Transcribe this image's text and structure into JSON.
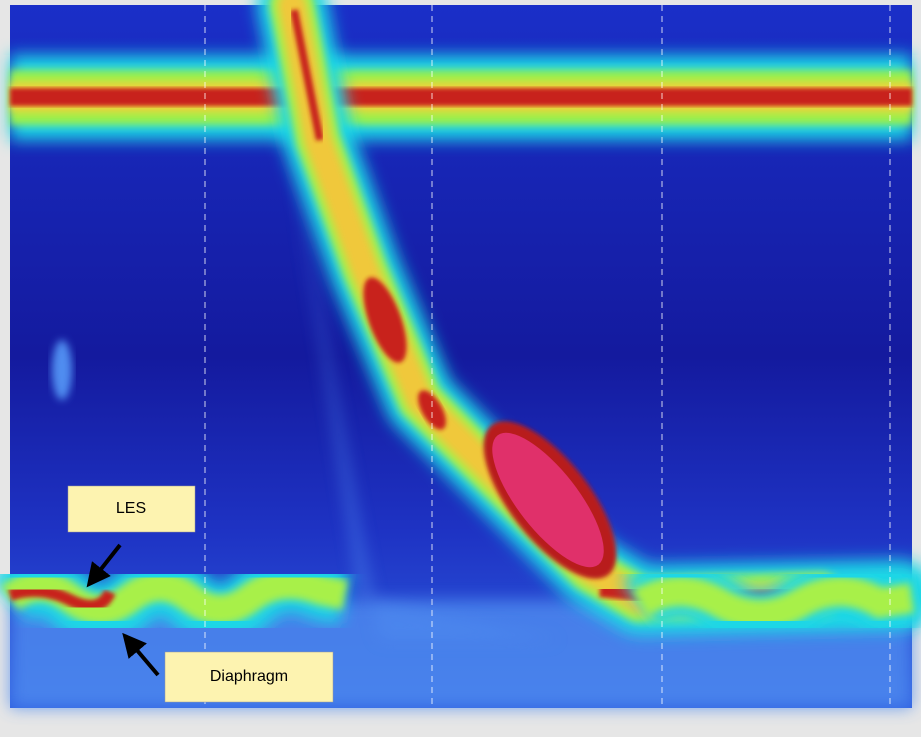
{
  "annotations": [
    "LES",
    "Diaphragm"
  ]
}
